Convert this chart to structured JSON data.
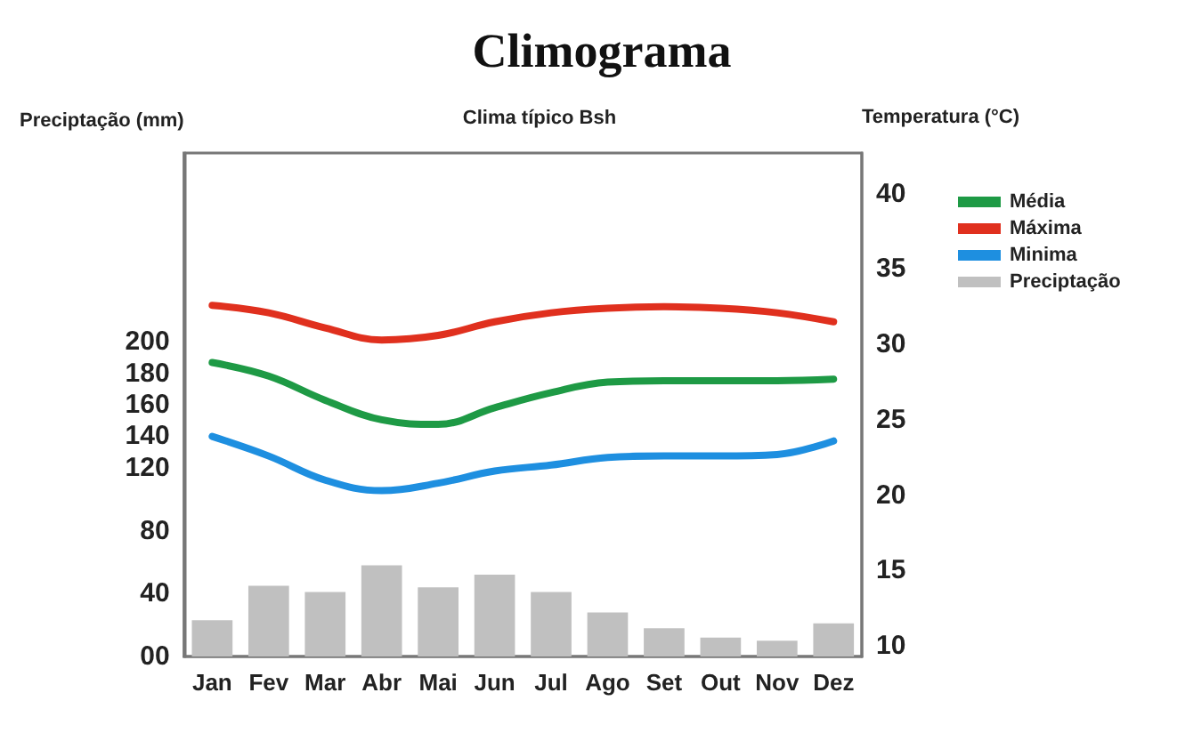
{
  "chart_data": {
    "type": "bar",
    "title": "Climograma",
    "subtitle": "Clima típico Bsh",
    "ylabel": "Preciptação (mm)",
    "y2label": "Temperatura (°C)",
    "categories": [
      "Jan",
      "Fev",
      "Mar",
      "Abr",
      "Mai",
      "Jun",
      "Jul",
      "Ago",
      "Set",
      "Out",
      "Nov",
      "Dez"
    ],
    "series": [
      {
        "name": "Média",
        "type": "line",
        "axis": "y2",
        "color": "#1e9a45",
        "values": [
          28.8,
          27.9,
          26.3,
          25.0,
          24.7,
          25.8,
          26.8,
          27.5,
          27.6,
          27.6,
          27.6,
          27.7
        ]
      },
      {
        "name": "Máxima",
        "type": "line",
        "axis": "y2",
        "color": "#e0301e",
        "values": [
          32.6,
          32.1,
          31.1,
          30.3,
          30.6,
          31.5,
          32.1,
          32.4,
          32.5,
          32.4,
          32.1,
          31.5
        ]
      },
      {
        "name": "Minima",
        "type": "line",
        "axis": "y2",
        "color": "#1e8fe0",
        "values": [
          23.9,
          22.6,
          21.0,
          20.3,
          20.8,
          21.6,
          22.0,
          22.5,
          22.6,
          22.6,
          22.7,
          23.6
        ]
      },
      {
        "name": "Preciptação",
        "color": "#c0c0c0",
        "values": [
          23,
          45,
          41,
          58,
          44,
          52,
          41,
          28,
          18,
          12,
          10,
          21
        ]
      }
    ],
    "ylim": [
      0,
      320
    ],
    "yticks": [
      {
        "value": 0,
        "label": "00"
      },
      40,
      80,
      120,
      140,
      160,
      180,
      200
    ],
    "y2lim": [
      9.3,
      42.7
    ],
    "y2ticks": [
      10,
      15,
      20,
      25,
      30,
      35,
      40
    ],
    "grid": false,
    "legend": "right",
    "marker": "none"
  }
}
